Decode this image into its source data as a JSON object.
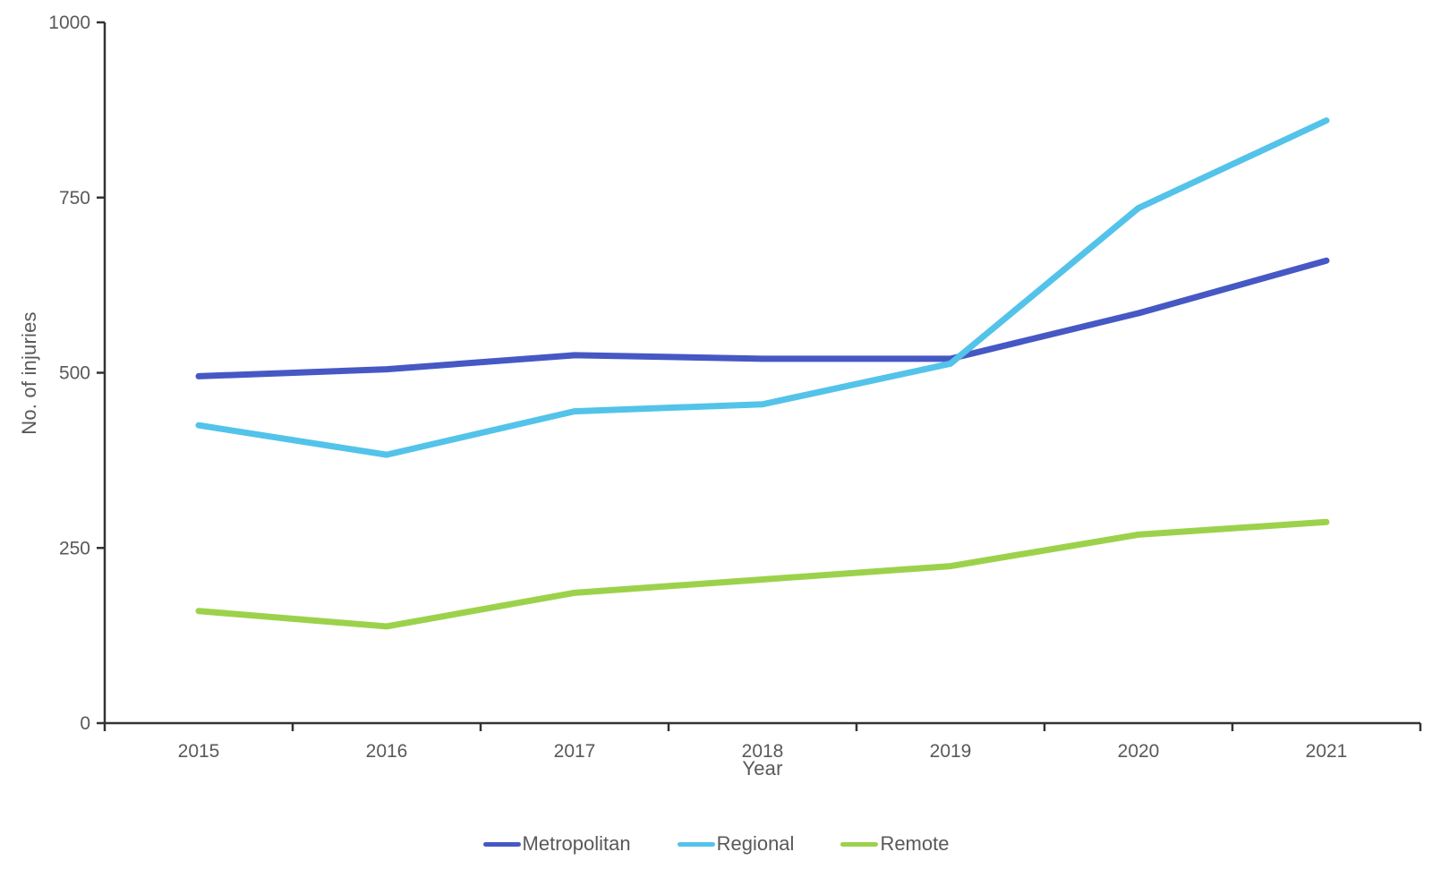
{
  "chart_data": {
    "type": "line",
    "x": [
      "2015",
      "2016",
      "2017",
      "2018",
      "2019",
      "2020",
      "2021"
    ],
    "series": [
      {
        "name": "Metropolitan",
        "color": "#4658C4",
        "values": [
          495,
          505,
          525,
          520,
          520,
          585,
          660
        ]
      },
      {
        "name": "Regional",
        "color": "#53C3EA",
        "values": [
          425,
          383,
          445,
          455,
          513,
          735,
          860
        ]
      },
      {
        "name": "Remote",
        "color": "#9CD24B",
        "values": [
          160,
          138,
          186,
          205,
          224,
          269,
          287
        ]
      }
    ],
    "title": "",
    "xlabel": "Year",
    "ylabel": "No. of injuries",
    "ylim": [
      0,
      1000
    ],
    "yticks": [
      0,
      250,
      500,
      750,
      1000
    ],
    "grid": "off",
    "legend_position": "bottom",
    "axis_color": "#333333",
    "tick_label_color": "#595959"
  }
}
